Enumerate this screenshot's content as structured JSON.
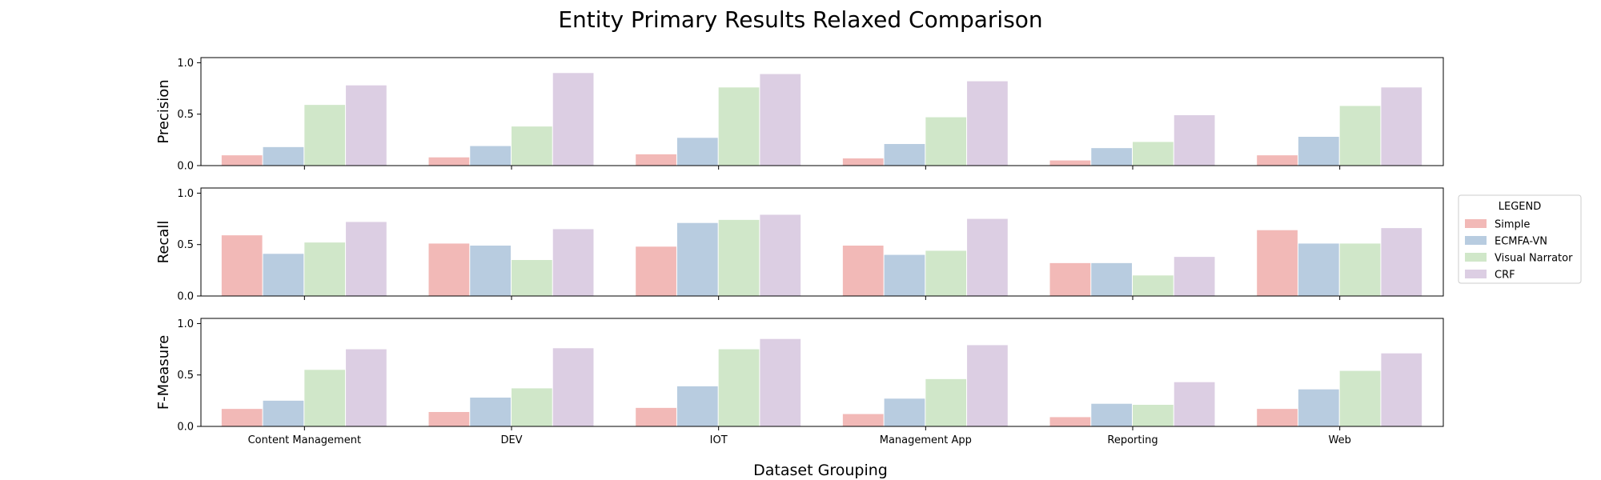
{
  "chart_data": {
    "type": "bar",
    "title": "Entity Primary Results Relaxed Comparison",
    "xlabel": "Dataset Grouping",
    "categories": [
      "Content Management",
      "DEV",
      "IOT",
      "Management App",
      "Reporting",
      "Web"
    ],
    "legend": {
      "title": "LEGEND",
      "placement": "center-right",
      "entries": [
        {
          "name": "Simple",
          "color": "#f2b9b7"
        },
        {
          "name": "ECMFA-VN",
          "color": "#b8cce0"
        },
        {
          "name": "Visual Narrator",
          "color": "#d0e7c9"
        },
        {
          "name": "CRF",
          "color": "#dccee3"
        }
      ]
    },
    "subplots": [
      {
        "ylabel": "Precision",
        "ylim": [
          0,
          1.05
        ],
        "yticks": [
          "0.0",
          "0.5",
          "1.0"
        ],
        "series": [
          {
            "name": "Simple",
            "values": [
              0.1,
              0.08,
              0.11,
              0.07,
              0.05,
              0.1
            ]
          },
          {
            "name": "ECMFA-VN",
            "values": [
              0.18,
              0.19,
              0.27,
              0.21,
              0.17,
              0.28
            ]
          },
          {
            "name": "Visual Narrator",
            "values": [
              0.59,
              0.38,
              0.76,
              0.47,
              0.23,
              0.58
            ]
          },
          {
            "name": "CRF",
            "values": [
              0.78,
              0.9,
              0.89,
              0.82,
              0.49,
              0.76
            ]
          }
        ]
      },
      {
        "ylabel": "Recall",
        "ylim": [
          0,
          1.05
        ],
        "yticks": [
          "0.0",
          "0.5",
          "1.0"
        ],
        "series": [
          {
            "name": "Simple",
            "values": [
              0.59,
              0.51,
              0.48,
              0.49,
              0.32,
              0.64
            ]
          },
          {
            "name": "ECMFA-VN",
            "values": [
              0.41,
              0.49,
              0.71,
              0.4,
              0.32,
              0.51
            ]
          },
          {
            "name": "Visual Narrator",
            "values": [
              0.52,
              0.35,
              0.74,
              0.44,
              0.2,
              0.51
            ]
          },
          {
            "name": "CRF",
            "values": [
              0.72,
              0.65,
              0.79,
              0.75,
              0.38,
              0.66
            ]
          }
        ]
      },
      {
        "ylabel": "F-Measure",
        "ylim": [
          0,
          1.05
        ],
        "yticks": [
          "0.0",
          "0.5",
          "1.0"
        ],
        "series": [
          {
            "name": "Simple",
            "values": [
              0.17,
              0.14,
              0.18,
              0.12,
              0.09,
              0.17
            ]
          },
          {
            "name": "ECMFA-VN",
            "values": [
              0.25,
              0.28,
              0.39,
              0.27,
              0.22,
              0.36
            ]
          },
          {
            "name": "Visual Narrator",
            "values": [
              0.55,
              0.37,
              0.75,
              0.46,
              0.21,
              0.54
            ]
          },
          {
            "name": "CRF",
            "values": [
              0.75,
              0.76,
              0.85,
              0.79,
              0.43,
              0.71
            ]
          }
        ]
      }
    ]
  }
}
